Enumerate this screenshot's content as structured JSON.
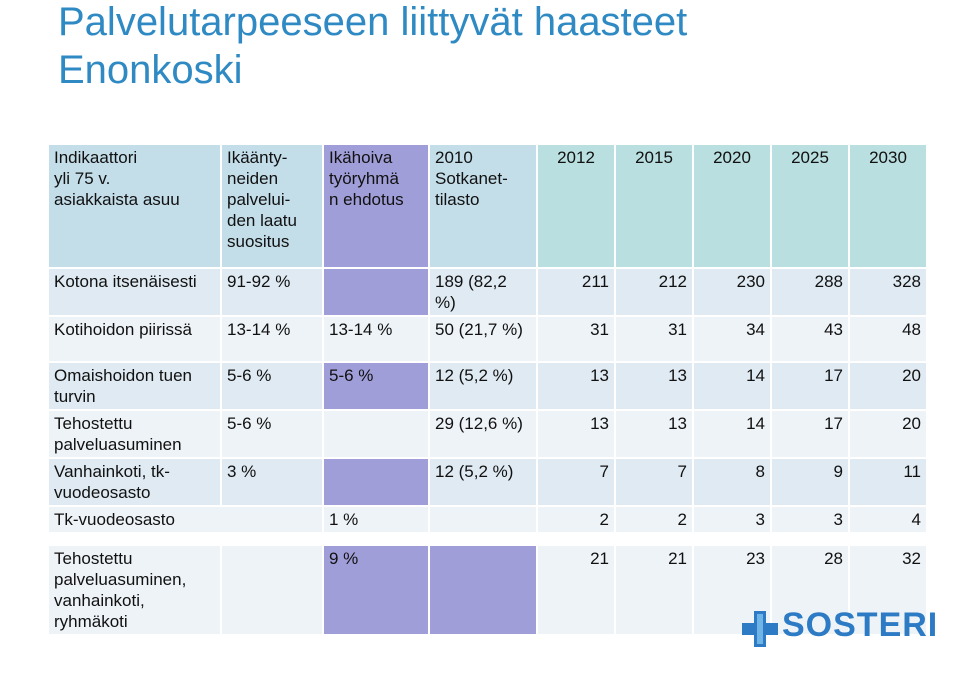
{
  "title": {
    "line1": "Palvelutarpeeseen liittyvät haasteet",
    "line2": "Enonkoski"
  },
  "table": {
    "headers": {
      "indicator": "Indikaattori yli 75 v. asiakkaista asuu",
      "quality": "Ikäänty-neiden palvelui-den laatu suositus",
      "workgroup": "Ikähoiva työryhmä n ehdotus",
      "sotkanet": "2010 Sotkanet-tilasto",
      "years": [
        "2012",
        "2015",
        "2020",
        "2025",
        "2030"
      ]
    },
    "rows": [
      {
        "indicator": "Kotona itsenäisesti",
        "quality": "91-92 %",
        "workgroup": "",
        "sotkanet": "189 (82,2 %)",
        "values": [
          "211",
          "212",
          "230",
          "288",
          "328"
        ]
      },
      {
        "indicator": "Kotihoidon piirissä",
        "quality": "13-14 %",
        "workgroup": "13-14 %",
        "sotkanet": "50 (21,7 %)",
        "values": [
          "31",
          "31",
          "34",
          "43",
          "48"
        ]
      },
      {
        "indicator": "Omaishoidon tuen turvin",
        "quality": "5-6 %",
        "workgroup": "5-6 %",
        "sotkanet": "12 (5,2 %)",
        "values": [
          "13",
          "13",
          "14",
          "17",
          "20"
        ]
      },
      {
        "indicator": "Tehostettu palveluasuminen",
        "quality": "5-6 %",
        "workgroup": "",
        "sotkanet": "29 (12,6 %)",
        "values": [
          "13",
          "13",
          "14",
          "17",
          "20"
        ]
      },
      {
        "indicator": "Vanhainkoti, tk-vuodeosasto",
        "quality": "3 %",
        "workgroup": "",
        "sotkanet": "12 (5,2 %)",
        "values": [
          "7",
          "7",
          "8",
          "9",
          "11"
        ]
      },
      {
        "indicator": "Tk-vuodeosasto",
        "quality": "",
        "workgroup": "1 %",
        "sotkanet": "",
        "values": [
          "2",
          "2",
          "3",
          "3",
          "4"
        ]
      },
      {
        "indicator": "Tehostettu palveluasuminen, vanhainkoti, ryhmäkoti",
        "quality": "",
        "workgroup": "9 %",
        "sotkanet": "",
        "values": [
          "21",
          "21",
          "23",
          "28",
          "32"
        ]
      }
    ]
  },
  "logo": {
    "text": "SOSTERI",
    "color": "#2d7bc4"
  },
  "colors": {
    "title": "#2f8ac4",
    "purple": "#a09ed9",
    "teal": "#b9dfe0",
    "light": "#dfeaf2"
  }
}
